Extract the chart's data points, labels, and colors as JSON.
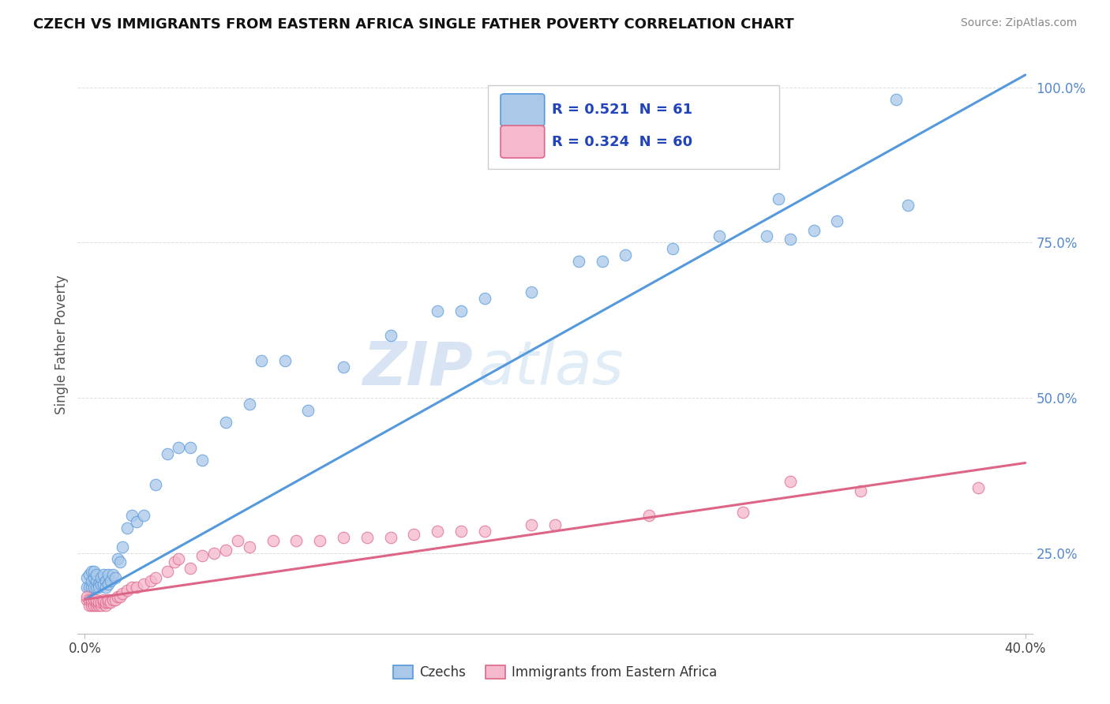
{
  "title": "CZECH VS IMMIGRANTS FROM EASTERN AFRICA SINGLE FATHER POVERTY CORRELATION CHART",
  "source": "Source: ZipAtlas.com",
  "ylabel": "Single Father Poverty",
  "R1": 0.521,
  "N1": 61,
  "R2": 0.324,
  "N2": 60,
  "color1": "#aac8e8",
  "color2": "#f5b8cc",
  "line1_color": "#5599dd",
  "line2_color": "#dd6688",
  "legend_label1": "Czechs",
  "legend_label2": "Immigrants from Eastern Africa",
  "x_min": 0.0,
  "x_max": 0.4,
  "y_min": 0.12,
  "y_max": 1.05,
  "yticks": [
    0.25,
    0.5,
    0.75,
    1.0
  ],
  "ytick_labels": [
    "25.0%",
    "50.0%",
    "75.0%",
    "100.0%"
  ],
  "xtick_labels": [
    "0.0%",
    "40.0%"
  ],
  "line1_x0": 0.0,
  "line1_y0": 0.175,
  "line1_x1": 0.4,
  "line1_y1": 1.02,
  "line2_x0": 0.0,
  "line2_y0": 0.175,
  "line2_x1": 0.4,
  "line2_y1": 0.395,
  "background": "#ffffff",
  "grid_color": "#dddddd",
  "watermark_text": "ZIPatlas",
  "title_color": "#111111",
  "source_color": "#888888",
  "axis_label_color": "#555555",
  "tick_color_y": "#5588cc",
  "tick_color_x": "#444444",
  "czechs_x": [
    0.001,
    0.001,
    0.002,
    0.002,
    0.003,
    0.003,
    0.003,
    0.004,
    0.004,
    0.004,
    0.005,
    0.005,
    0.005,
    0.006,
    0.006,
    0.007,
    0.007,
    0.008,
    0.008,
    0.009,
    0.009,
    0.01,
    0.01,
    0.011,
    0.012,
    0.013,
    0.014,
    0.015,
    0.016,
    0.018,
    0.02,
    0.022,
    0.025,
    0.03,
    0.035,
    0.04,
    0.045,
    0.05,
    0.06,
    0.07,
    0.075,
    0.085,
    0.095,
    0.11,
    0.13,
    0.15,
    0.16,
    0.17,
    0.19,
    0.21,
    0.22,
    0.23,
    0.25,
    0.27,
    0.29,
    0.3,
    0.31,
    0.32,
    0.35,
    0.295,
    0.345
  ],
  "czechs_y": [
    0.195,
    0.21,
    0.195,
    0.215,
    0.195,
    0.205,
    0.22,
    0.195,
    0.21,
    0.22,
    0.195,
    0.205,
    0.215,
    0.2,
    0.195,
    0.2,
    0.21,
    0.2,
    0.215,
    0.205,
    0.195,
    0.2,
    0.215,
    0.205,
    0.215,
    0.21,
    0.24,
    0.235,
    0.26,
    0.29,
    0.31,
    0.3,
    0.31,
    0.36,
    0.41,
    0.42,
    0.42,
    0.4,
    0.46,
    0.49,
    0.56,
    0.56,
    0.48,
    0.55,
    0.6,
    0.64,
    0.64,
    0.66,
    0.67,
    0.72,
    0.72,
    0.73,
    0.74,
    0.76,
    0.76,
    0.755,
    0.77,
    0.785,
    0.81,
    0.82,
    0.98
  ],
  "immigrants_x": [
    0.001,
    0.001,
    0.002,
    0.002,
    0.003,
    0.003,
    0.003,
    0.004,
    0.004,
    0.005,
    0.005,
    0.005,
    0.006,
    0.006,
    0.007,
    0.007,
    0.008,
    0.008,
    0.009,
    0.009,
    0.01,
    0.01,
    0.011,
    0.012,
    0.013,
    0.014,
    0.015,
    0.016,
    0.018,
    0.02,
    0.022,
    0.025,
    0.028,
    0.03,
    0.035,
    0.038,
    0.04,
    0.045,
    0.05,
    0.055,
    0.06,
    0.065,
    0.07,
    0.08,
    0.09,
    0.1,
    0.11,
    0.12,
    0.13,
    0.14,
    0.15,
    0.16,
    0.17,
    0.19,
    0.2,
    0.24,
    0.28,
    0.3,
    0.33,
    0.38
  ],
  "immigrants_y": [
    0.175,
    0.18,
    0.165,
    0.175,
    0.17,
    0.165,
    0.175,
    0.165,
    0.175,
    0.165,
    0.17,
    0.175,
    0.165,
    0.17,
    0.165,
    0.17,
    0.17,
    0.175,
    0.165,
    0.17,
    0.17,
    0.175,
    0.17,
    0.175,
    0.175,
    0.18,
    0.18,
    0.185,
    0.19,
    0.195,
    0.195,
    0.2,
    0.205,
    0.21,
    0.22,
    0.235,
    0.24,
    0.225,
    0.245,
    0.25,
    0.255,
    0.27,
    0.26,
    0.27,
    0.27,
    0.27,
    0.275,
    0.275,
    0.275,
    0.28,
    0.285,
    0.285,
    0.285,
    0.295,
    0.295,
    0.31,
    0.315,
    0.365,
    0.35,
    0.355
  ]
}
